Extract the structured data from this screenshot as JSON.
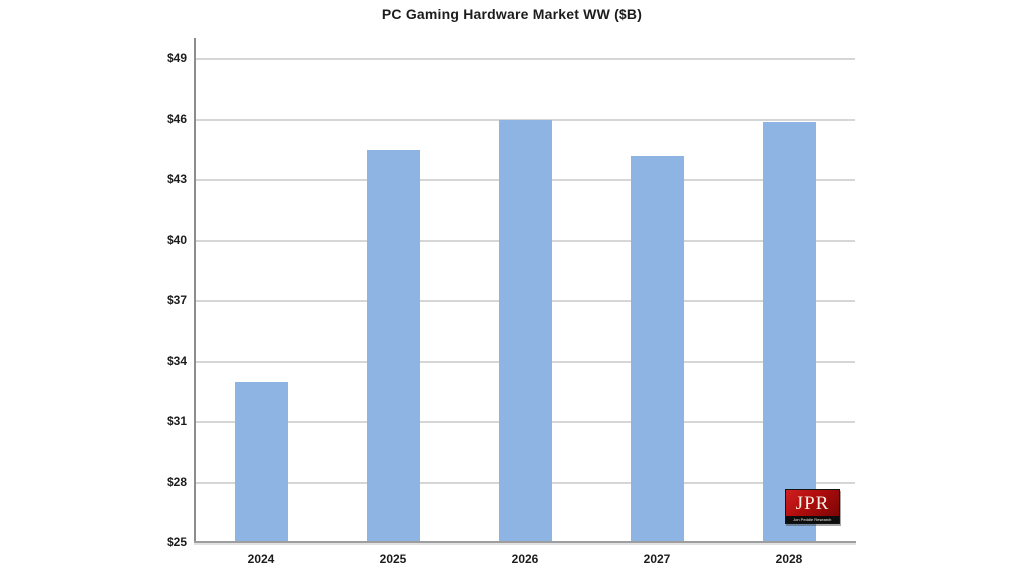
{
  "chart_data": {
    "type": "bar",
    "title": "PC Gaming  Hardware Market WW ($B)",
    "categories": [
      "2024",
      "2025",
      "2026",
      "2027",
      "2028"
    ],
    "values": [
      33.0,
      44.5,
      46.0,
      44.2,
      45.9
    ],
    "xlabel": "",
    "ylabel": "",
    "ylim": [
      25,
      50
    ],
    "yticks": [
      25,
      28,
      31,
      34,
      37,
      40,
      43,
      46,
      49
    ],
    "ytick_prefix": "$",
    "grid": true,
    "legend": false,
    "bar_color": "#8db4e2"
  },
  "logo": {
    "text": "JPR",
    "subtext": "Jon Peddie Research",
    "bg_color": "#b00d0d",
    "band_color": "#0d0d0d"
  }
}
